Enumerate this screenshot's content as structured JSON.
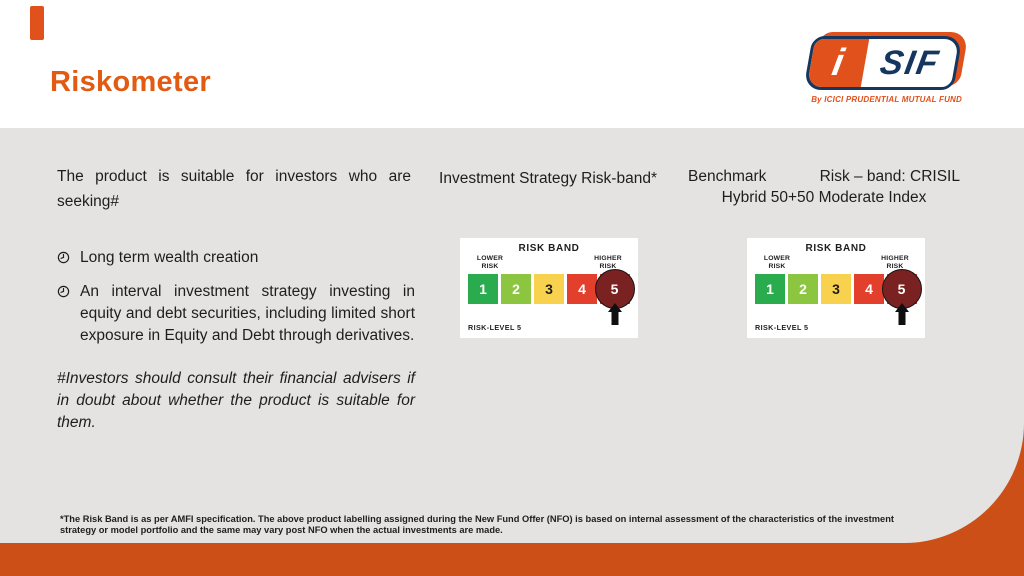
{
  "header": {
    "title": "Riskometer"
  },
  "logo": {
    "i": "i",
    "sif": "SIF",
    "tagline": "By ICICI PRUDENTIAL MUTUAL FUND"
  },
  "left": {
    "intro": "The product is suitable for investors who are seeking#",
    "bullets": [
      "Long term wealth creation",
      "An interval investment strategy investing in equity and debt securities, including limited short exposure in Equity and Debt through derivatives."
    ],
    "disclaimer": "#Investors should consult their financial advisers if in doubt about whether the product is suitable for them."
  },
  "strategy": {
    "heading": "Investment Strategy Risk-band*"
  },
  "benchmark": {
    "line1_left": "Benchmark",
    "line1_right": "Risk – band: CRISIL",
    "line2": "Hybrid 50+50 Moderate Index"
  },
  "risk_band": {
    "title": "RISK BAND",
    "lower_label": "LOWER RISK",
    "higher_label": "HIGHER RISK",
    "level_label": "RISK-LEVEL 5",
    "selected_level": "5",
    "levels": [
      {
        "n": "1",
        "color": "#2AAB4E",
        "text_color": "#ffffff",
        "selected": false
      },
      {
        "n": "2",
        "color": "#8CC540",
        "text_color": "#ffffff",
        "selected": false
      },
      {
        "n": "3",
        "color": "#F8D14F",
        "text_color": "#1D1D1D",
        "selected": false
      },
      {
        "n": "4",
        "color": "#E2402D",
        "text_color": "#ffffff",
        "selected": false
      },
      {
        "n": "5",
        "color": "#E2402D",
        "text_color": "#ffffff",
        "selected": true,
        "circle_color": "#7A2222"
      }
    ]
  },
  "footer": {
    "lines": [
      "*The Risk Band is as per AMFI specification. The above product labelling assigned during the New Fund Offer (NFO) is based on internal assessment of the characteristics of the investment",
      "strategy or model portfolio and the same may vary post NFO when the actual investments are made."
    ]
  },
  "colors": {
    "accent_orange": "#E0511B",
    "title_orange": "#E25B12",
    "deep_orange": "#CB4F17",
    "navy": "#14365F",
    "panel_gray": "#E4E3E2",
    "text": "#1E1E1E"
  }
}
